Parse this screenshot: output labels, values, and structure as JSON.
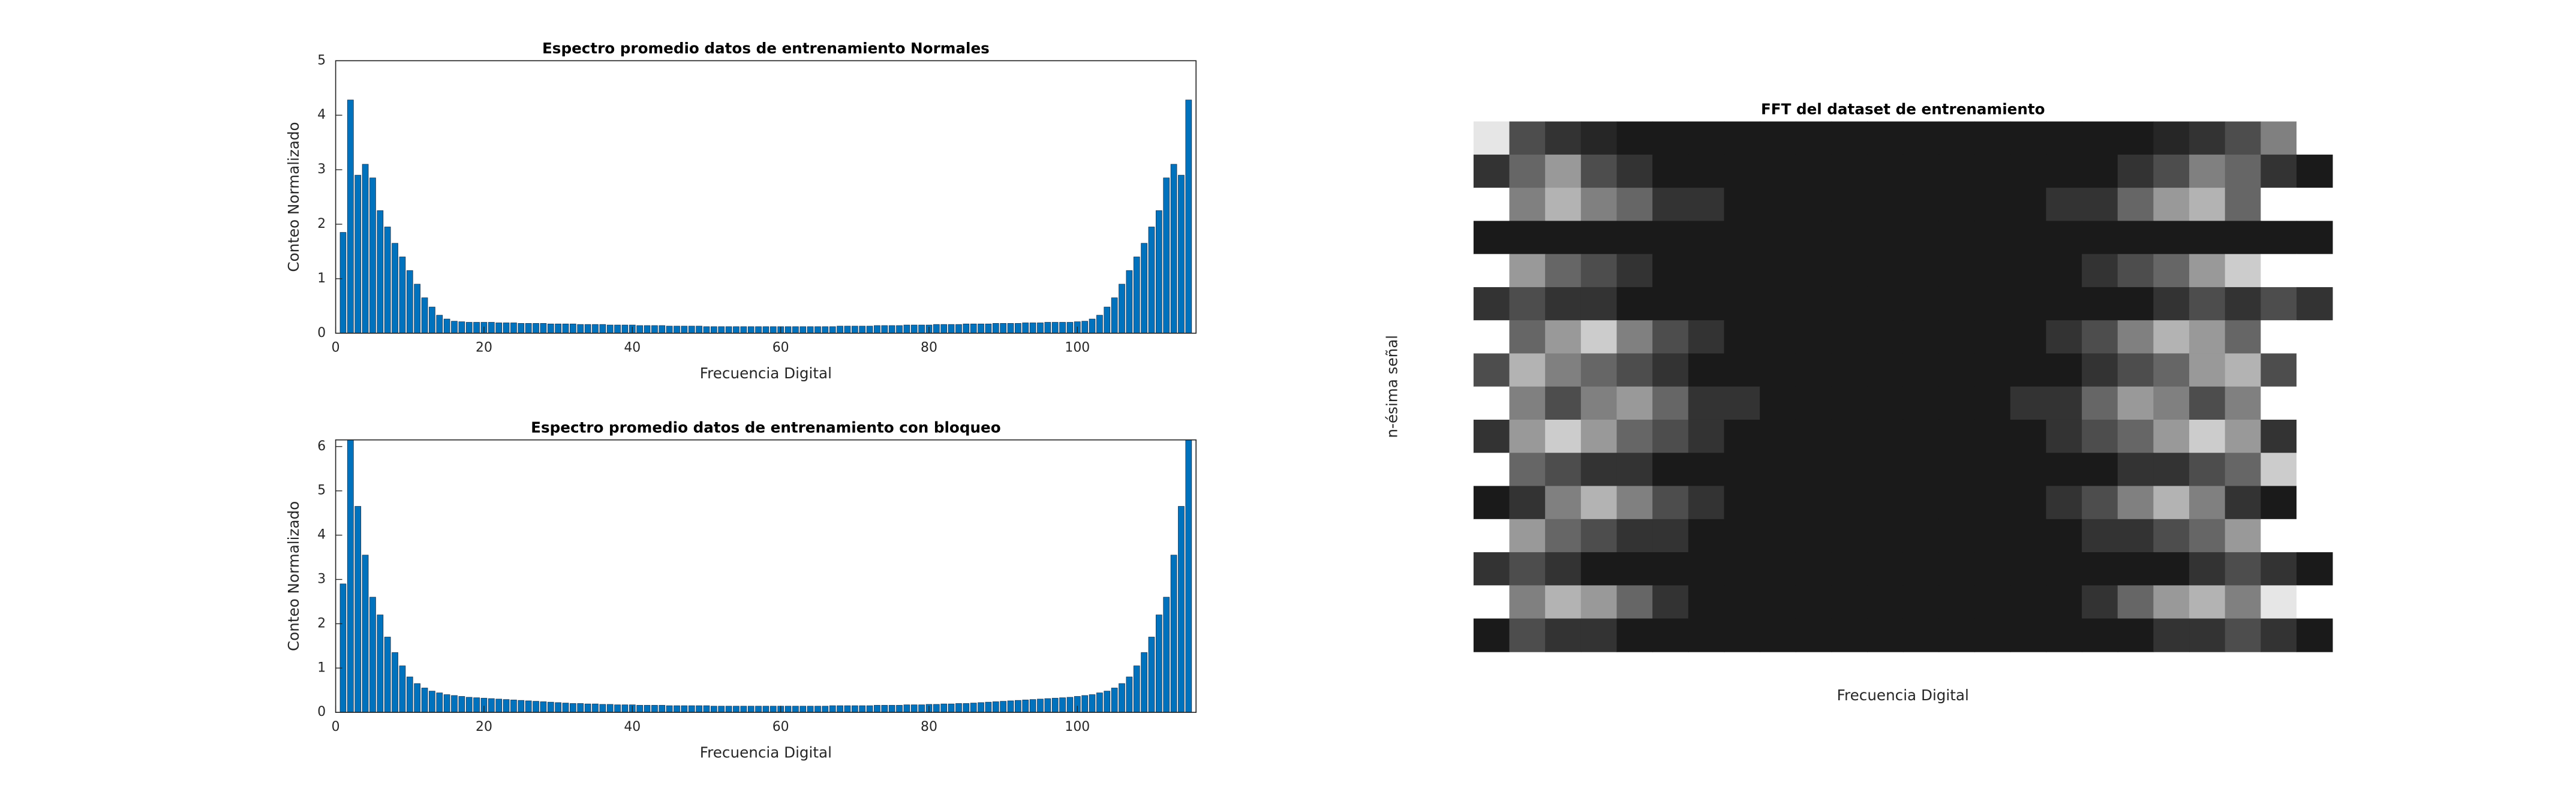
{
  "chart_data": [
    {
      "type": "bar",
      "title": "Espectro promedio datos de entrenamiento Normales",
      "xlabel": "Frecuencia Digital",
      "ylabel": "Conteo Normalizado",
      "color": "#0072bd",
      "x": [
        1,
        2,
        3,
        4,
        5,
        6,
        7,
        8,
        9,
        10,
        11,
        12,
        13,
        14,
        15,
        16,
        17,
        18,
        19,
        20,
        21,
        22,
        23,
        24,
        25,
        26,
        27,
        28,
        29,
        30,
        31,
        32,
        33,
        34,
        35,
        36,
        37,
        38,
        39,
        40,
        41,
        42,
        43,
        44,
        45,
        46,
        47,
        48,
        49,
        50,
        51,
        52,
        53,
        54,
        55,
        56,
        57,
        58,
        59,
        60,
        61,
        62,
        63,
        64,
        65,
        66,
        67,
        68,
        69,
        70,
        71,
        72,
        73,
        74,
        75,
        76,
        77,
        78,
        79,
        80,
        81,
        82,
        83,
        84,
        85,
        86,
        87,
        88,
        89,
        90,
        91,
        92,
        93,
        94,
        95,
        96,
        97,
        98,
        99,
        100,
        101,
        102,
        103,
        104,
        105,
        106,
        107,
        108,
        109,
        110,
        111,
        112,
        113,
        114,
        115
      ],
      "values": [
        1.85,
        4.28,
        2.9,
        3.1,
        2.85,
        2.25,
        1.95,
        1.65,
        1.4,
        1.15,
        0.9,
        0.65,
        0.48,
        0.33,
        0.26,
        0.22,
        0.21,
        0.2,
        0.2,
        0.2,
        0.2,
        0.19,
        0.19,
        0.19,
        0.18,
        0.18,
        0.18,
        0.18,
        0.17,
        0.17,
        0.17,
        0.17,
        0.16,
        0.16,
        0.16,
        0.16,
        0.15,
        0.15,
        0.15,
        0.15,
        0.14,
        0.14,
        0.14,
        0.14,
        0.13,
        0.13,
        0.13,
        0.13,
        0.13,
        0.12,
        0.12,
        0.12,
        0.12,
        0.12,
        0.12,
        0.12,
        0.12,
        0.12,
        0.12,
        0.12,
        0.12,
        0.12,
        0.12,
        0.12,
        0.12,
        0.12,
        0.12,
        0.13,
        0.13,
        0.13,
        0.13,
        0.13,
        0.14,
        0.14,
        0.14,
        0.14,
        0.15,
        0.15,
        0.15,
        0.15,
        0.16,
        0.16,
        0.16,
        0.16,
        0.17,
        0.17,
        0.17,
        0.17,
        0.18,
        0.18,
        0.18,
        0.18,
        0.19,
        0.19,
        0.19,
        0.2,
        0.2,
        0.2,
        0.2,
        0.21,
        0.22,
        0.26,
        0.33,
        0.48,
        0.65,
        0.9,
        1.15,
        1.4,
        1.65,
        1.95,
        2.25,
        2.85,
        3.1,
        2.9,
        4.28
      ],
      "xlim": [
        0,
        116
      ],
      "xticks": [
        0,
        20,
        40,
        60,
        80,
        100
      ],
      "ylim": [
        0,
        5
      ],
      "yticks": [
        0,
        1,
        2,
        3,
        4,
        5
      ]
    },
    {
      "type": "bar",
      "title": "Espectro promedio datos de entrenamiento con bloqueo",
      "xlabel": "Frecuencia Digital",
      "ylabel": "Conteo Normalizado",
      "color": "#0072bd",
      "x": [
        1,
        2,
        3,
        4,
        5,
        6,
        7,
        8,
        9,
        10,
        11,
        12,
        13,
        14,
        15,
        16,
        17,
        18,
        19,
        20,
        21,
        22,
        23,
        24,
        25,
        26,
        27,
        28,
        29,
        30,
        31,
        32,
        33,
        34,
        35,
        36,
        37,
        38,
        39,
        40,
        41,
        42,
        43,
        44,
        45,
        46,
        47,
        48,
        49,
        50,
        51,
        52,
        53,
        54,
        55,
        56,
        57,
        58,
        59,
        60,
        61,
        62,
        63,
        64,
        65,
        66,
        67,
        68,
        69,
        70,
        71,
        72,
        73,
        74,
        75,
        76,
        77,
        78,
        79,
        80,
        81,
        82,
        83,
        84,
        85,
        86,
        87,
        88,
        89,
        90,
        91,
        92,
        93,
        94,
        95,
        96,
        97,
        98,
        99,
        100,
        101,
        102,
        103,
        104,
        105,
        106,
        107,
        108,
        109,
        110,
        111,
        112,
        113,
        114,
        115
      ],
      "values": [
        2.9,
        6.15,
        4.65,
        3.55,
        2.6,
        2.2,
        1.7,
        1.35,
        1.05,
        0.8,
        0.65,
        0.55,
        0.48,
        0.44,
        0.4,
        0.38,
        0.36,
        0.34,
        0.33,
        0.32,
        0.31,
        0.3,
        0.29,
        0.28,
        0.27,
        0.26,
        0.25,
        0.24,
        0.23,
        0.22,
        0.21,
        0.2,
        0.2,
        0.19,
        0.19,
        0.18,
        0.18,
        0.17,
        0.17,
        0.17,
        0.16,
        0.16,
        0.16,
        0.16,
        0.15,
        0.15,
        0.15,
        0.15,
        0.15,
        0.15,
        0.14,
        0.14,
        0.14,
        0.14,
        0.14,
        0.14,
        0.14,
        0.14,
        0.14,
        0.14,
        0.14,
        0.14,
        0.14,
        0.14,
        0.14,
        0.14,
        0.15,
        0.15,
        0.15,
        0.15,
        0.15,
        0.15,
        0.16,
        0.16,
        0.16,
        0.16,
        0.17,
        0.17,
        0.17,
        0.18,
        0.18,
        0.19,
        0.19,
        0.2,
        0.2,
        0.21,
        0.22,
        0.23,
        0.24,
        0.25,
        0.26,
        0.27,
        0.28,
        0.29,
        0.3,
        0.31,
        0.32,
        0.33,
        0.34,
        0.36,
        0.38,
        0.4,
        0.44,
        0.48,
        0.55,
        0.65,
        0.8,
        1.05,
        1.35,
        1.7,
        2.2,
        2.6,
        3.55,
        4.65,
        6.15
      ],
      "xlim": [
        0,
        116
      ],
      "xticks": [
        0,
        20,
        40,
        60,
        80,
        100
      ],
      "ylim": [
        0,
        6.15
      ],
      "yticks": [
        0,
        1,
        2,
        3,
        4,
        5,
        6
      ]
    },
    {
      "type": "heatmap",
      "title": "FFT del dataset de entrenamiento",
      "xlabel": "Frecuencia Digital",
      "ylabel": "n-ésima señal",
      "colormap": "gray",
      "values": [
        [
          0.9,
          0.3,
          0.2,
          0.15,
          0.1,
          0.1,
          0.1,
          0.1,
          0.1,
          0.1,
          0.1,
          0.1,
          0.1,
          0.1,
          0.1,
          0.1,
          0.1,
          0.1,
          0.1,
          0.15,
          0.2,
          0.3,
          0.5,
          1.0
        ],
        [
          0.2,
          0.4,
          0.6,
          0.3,
          0.2,
          0.1,
          0.1,
          0.1,
          0.1,
          0.1,
          0.1,
          0.1,
          0.1,
          0.1,
          0.1,
          0.1,
          0.1,
          0.1,
          0.2,
          0.3,
          0.5,
          0.4,
          0.2,
          0.1
        ],
        [
          1.0,
          0.5,
          0.7,
          0.5,
          0.4,
          0.2,
          0.2,
          0.1,
          0.1,
          0.1,
          0.1,
          0.1,
          0.1,
          0.1,
          0.1,
          0.1,
          0.2,
          0.2,
          0.4,
          0.6,
          0.7,
          0.4,
          1.0,
          1.0
        ],
        [
          0.1,
          0.1,
          0.1,
          0.1,
          0.1,
          0.1,
          0.1,
          0.1,
          0.1,
          0.1,
          0.1,
          0.1,
          0.1,
          0.1,
          0.1,
          0.1,
          0.1,
          0.1,
          0.1,
          0.1,
          0.1,
          0.1,
          0.1,
          0.1
        ],
        [
          1.0,
          0.6,
          0.4,
          0.3,
          0.2,
          0.1,
          0.1,
          0.1,
          0.1,
          0.1,
          0.1,
          0.1,
          0.1,
          0.1,
          0.1,
          0.1,
          0.1,
          0.2,
          0.3,
          0.4,
          0.6,
          0.8,
          1.0,
          1.0
        ],
        [
          0.2,
          0.3,
          0.2,
          0.2,
          0.1,
          0.1,
          0.1,
          0.1,
          0.1,
          0.1,
          0.1,
          0.1,
          0.1,
          0.1,
          0.1,
          0.1,
          0.1,
          0.1,
          0.1,
          0.2,
          0.3,
          0.2,
          0.3,
          0.2
        ],
        [
          1.0,
          0.4,
          0.6,
          0.8,
          0.5,
          0.3,
          0.2,
          0.1,
          0.1,
          0.1,
          0.1,
          0.1,
          0.1,
          0.1,
          0.1,
          0.1,
          0.2,
          0.3,
          0.5,
          0.7,
          0.6,
          0.4,
          1.0,
          1.0
        ],
        [
          0.3,
          0.7,
          0.5,
          0.4,
          0.3,
          0.2,
          0.1,
          0.1,
          0.1,
          0.1,
          0.1,
          0.1,
          0.1,
          0.1,
          0.1,
          0.1,
          0.1,
          0.2,
          0.3,
          0.4,
          0.6,
          0.7,
          0.3,
          1.0
        ],
        [
          1.0,
          0.5,
          0.3,
          0.5,
          0.6,
          0.4,
          0.2,
          0.2,
          0.1,
          0.1,
          0.1,
          0.1,
          0.1,
          0.1,
          0.1,
          0.2,
          0.2,
          0.4,
          0.6,
          0.5,
          0.3,
          0.5,
          1.0,
          1.0
        ],
        [
          0.2,
          0.6,
          0.8,
          0.6,
          0.4,
          0.3,
          0.2,
          0.1,
          0.1,
          0.1,
          0.1,
          0.1,
          0.1,
          0.1,
          0.1,
          0.1,
          0.2,
          0.3,
          0.4,
          0.6,
          0.8,
          0.6,
          0.2,
          1.0
        ],
        [
          1.0,
          0.4,
          0.3,
          0.2,
          0.2,
          0.1,
          0.1,
          0.1,
          0.1,
          0.1,
          0.1,
          0.1,
          0.1,
          0.1,
          0.1,
          0.1,
          0.1,
          0.1,
          0.2,
          0.2,
          0.3,
          0.4,
          0.8,
          1.0
        ],
        [
          0.1,
          0.2,
          0.5,
          0.7,
          0.5,
          0.3,
          0.2,
          0.1,
          0.1,
          0.1,
          0.1,
          0.1,
          0.1,
          0.1,
          0.1,
          0.1,
          0.2,
          0.3,
          0.5,
          0.7,
          0.5,
          0.2,
          0.1,
          1.0
        ],
        [
          1.0,
          0.6,
          0.4,
          0.3,
          0.2,
          0.2,
          0.1,
          0.1,
          0.1,
          0.1,
          0.1,
          0.1,
          0.1,
          0.1,
          0.1,
          0.1,
          0.1,
          0.2,
          0.2,
          0.3,
          0.4,
          0.6,
          1.0,
          1.0
        ],
        [
          0.2,
          0.3,
          0.2,
          0.1,
          0.1,
          0.1,
          0.1,
          0.1,
          0.1,
          0.1,
          0.1,
          0.1,
          0.1,
          0.1,
          0.1,
          0.1,
          0.1,
          0.1,
          0.1,
          0.1,
          0.2,
          0.3,
          0.2,
          0.1
        ],
        [
          1.0,
          0.5,
          0.7,
          0.6,
          0.4,
          0.2,
          0.1,
          0.1,
          0.1,
          0.1,
          0.1,
          0.1,
          0.1,
          0.1,
          0.1,
          0.1,
          0.1,
          0.2,
          0.4,
          0.6,
          0.7,
          0.5,
          0.9,
          1.0
        ],
        [
          0.1,
          0.3,
          0.2,
          0.2,
          0.1,
          0.1,
          0.1,
          0.1,
          0.1,
          0.1,
          0.1,
          0.1,
          0.1,
          0.1,
          0.1,
          0.1,
          0.1,
          0.1,
          0.1,
          0.2,
          0.2,
          0.3,
          0.2,
          0.1
        ]
      ]
    }
  ]
}
